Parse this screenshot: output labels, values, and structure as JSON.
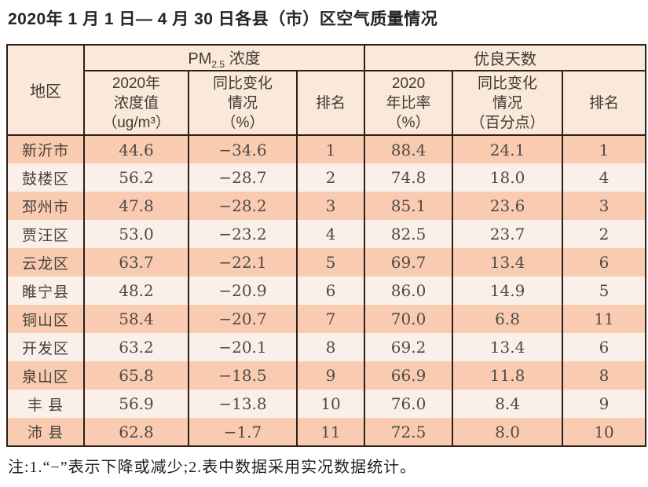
{
  "page": {
    "title": "2020年 1 月 1 日— 4 月 30 日各县（市）区空气质量情况",
    "footnote": "注:1.“−”表示下降或减少;2.表中数据采用实况数据统计。"
  },
  "colors": {
    "border": "#2e1f18",
    "header_bg": "#fae8d8",
    "row_odd": "#f9ccb2",
    "row_even": "#fbf0e9"
  },
  "table": {
    "corner_header": "地区",
    "group_headers": [
      {
        "pre": "PM",
        "sub": "2.5",
        "post": " 浓度"
      },
      {
        "pre": "优良天数",
        "sub": "",
        "post": ""
      }
    ],
    "sub_headers": [
      "2020年\n浓度值\n（ug/m³）",
      "同比变化\n情况\n（%）",
      "排名",
      "2020\n年比率\n（%）",
      "同比变化\n情况\n（百分点）",
      "排名"
    ],
    "column_keys": [
      "region",
      "pm_value",
      "pm_change",
      "pm_rank",
      "good_ratio",
      "good_change",
      "good_rank"
    ],
    "rows": [
      {
        "region": "新沂市",
        "pm_value": "44.6",
        "pm_change": "−34.6",
        "pm_rank": "1",
        "good_ratio": "88.4",
        "good_change": "24.1",
        "good_rank": "1"
      },
      {
        "region": "鼓楼区",
        "pm_value": "56.2",
        "pm_change": "−28.7",
        "pm_rank": "2",
        "good_ratio": "74.8",
        "good_change": "18.0",
        "good_rank": "4"
      },
      {
        "region": "邳州市",
        "pm_value": "47.8",
        "pm_change": "−28.2",
        "pm_rank": "3",
        "good_ratio": "85.1",
        "good_change": "23.6",
        "good_rank": "3"
      },
      {
        "region": "贾汪区",
        "pm_value": "53.0",
        "pm_change": "−23.2",
        "pm_rank": "4",
        "good_ratio": "82.5",
        "good_change": "23.7",
        "good_rank": "2"
      },
      {
        "region": "云龙区",
        "pm_value": "63.7",
        "pm_change": "−22.1",
        "pm_rank": "5",
        "good_ratio": "69.7",
        "good_change": "13.4",
        "good_rank": "6"
      },
      {
        "region": "睢宁县",
        "pm_value": "48.2",
        "pm_change": "−20.9",
        "pm_rank": "6",
        "good_ratio": "86.0",
        "good_change": "14.9",
        "good_rank": "5"
      },
      {
        "region": "铜山区",
        "pm_value": "58.4",
        "pm_change": "−20.7",
        "pm_rank": "7",
        "good_ratio": "70.0",
        "good_change": "6.8",
        "good_rank": "11"
      },
      {
        "region": "开发区",
        "pm_value": "63.2",
        "pm_change": "−20.1",
        "pm_rank": "8",
        "good_ratio": "69.2",
        "good_change": "13.4",
        "good_rank": "6"
      },
      {
        "region": "泉山区",
        "pm_value": "65.8",
        "pm_change": "−18.5",
        "pm_rank": "9",
        "good_ratio": "66.9",
        "good_change": "11.8",
        "good_rank": "8"
      },
      {
        "region": "丰 县",
        "pm_value": "56.9",
        "pm_change": "−13.8",
        "pm_rank": "10",
        "good_ratio": "76.0",
        "good_change": "8.4",
        "good_rank": "9"
      },
      {
        "region": "沛 县",
        "pm_value": "62.8",
        "pm_change": "−1.7",
        "pm_rank": "11",
        "good_ratio": "72.5",
        "good_change": "8.0",
        "good_rank": "10"
      }
    ]
  }
}
